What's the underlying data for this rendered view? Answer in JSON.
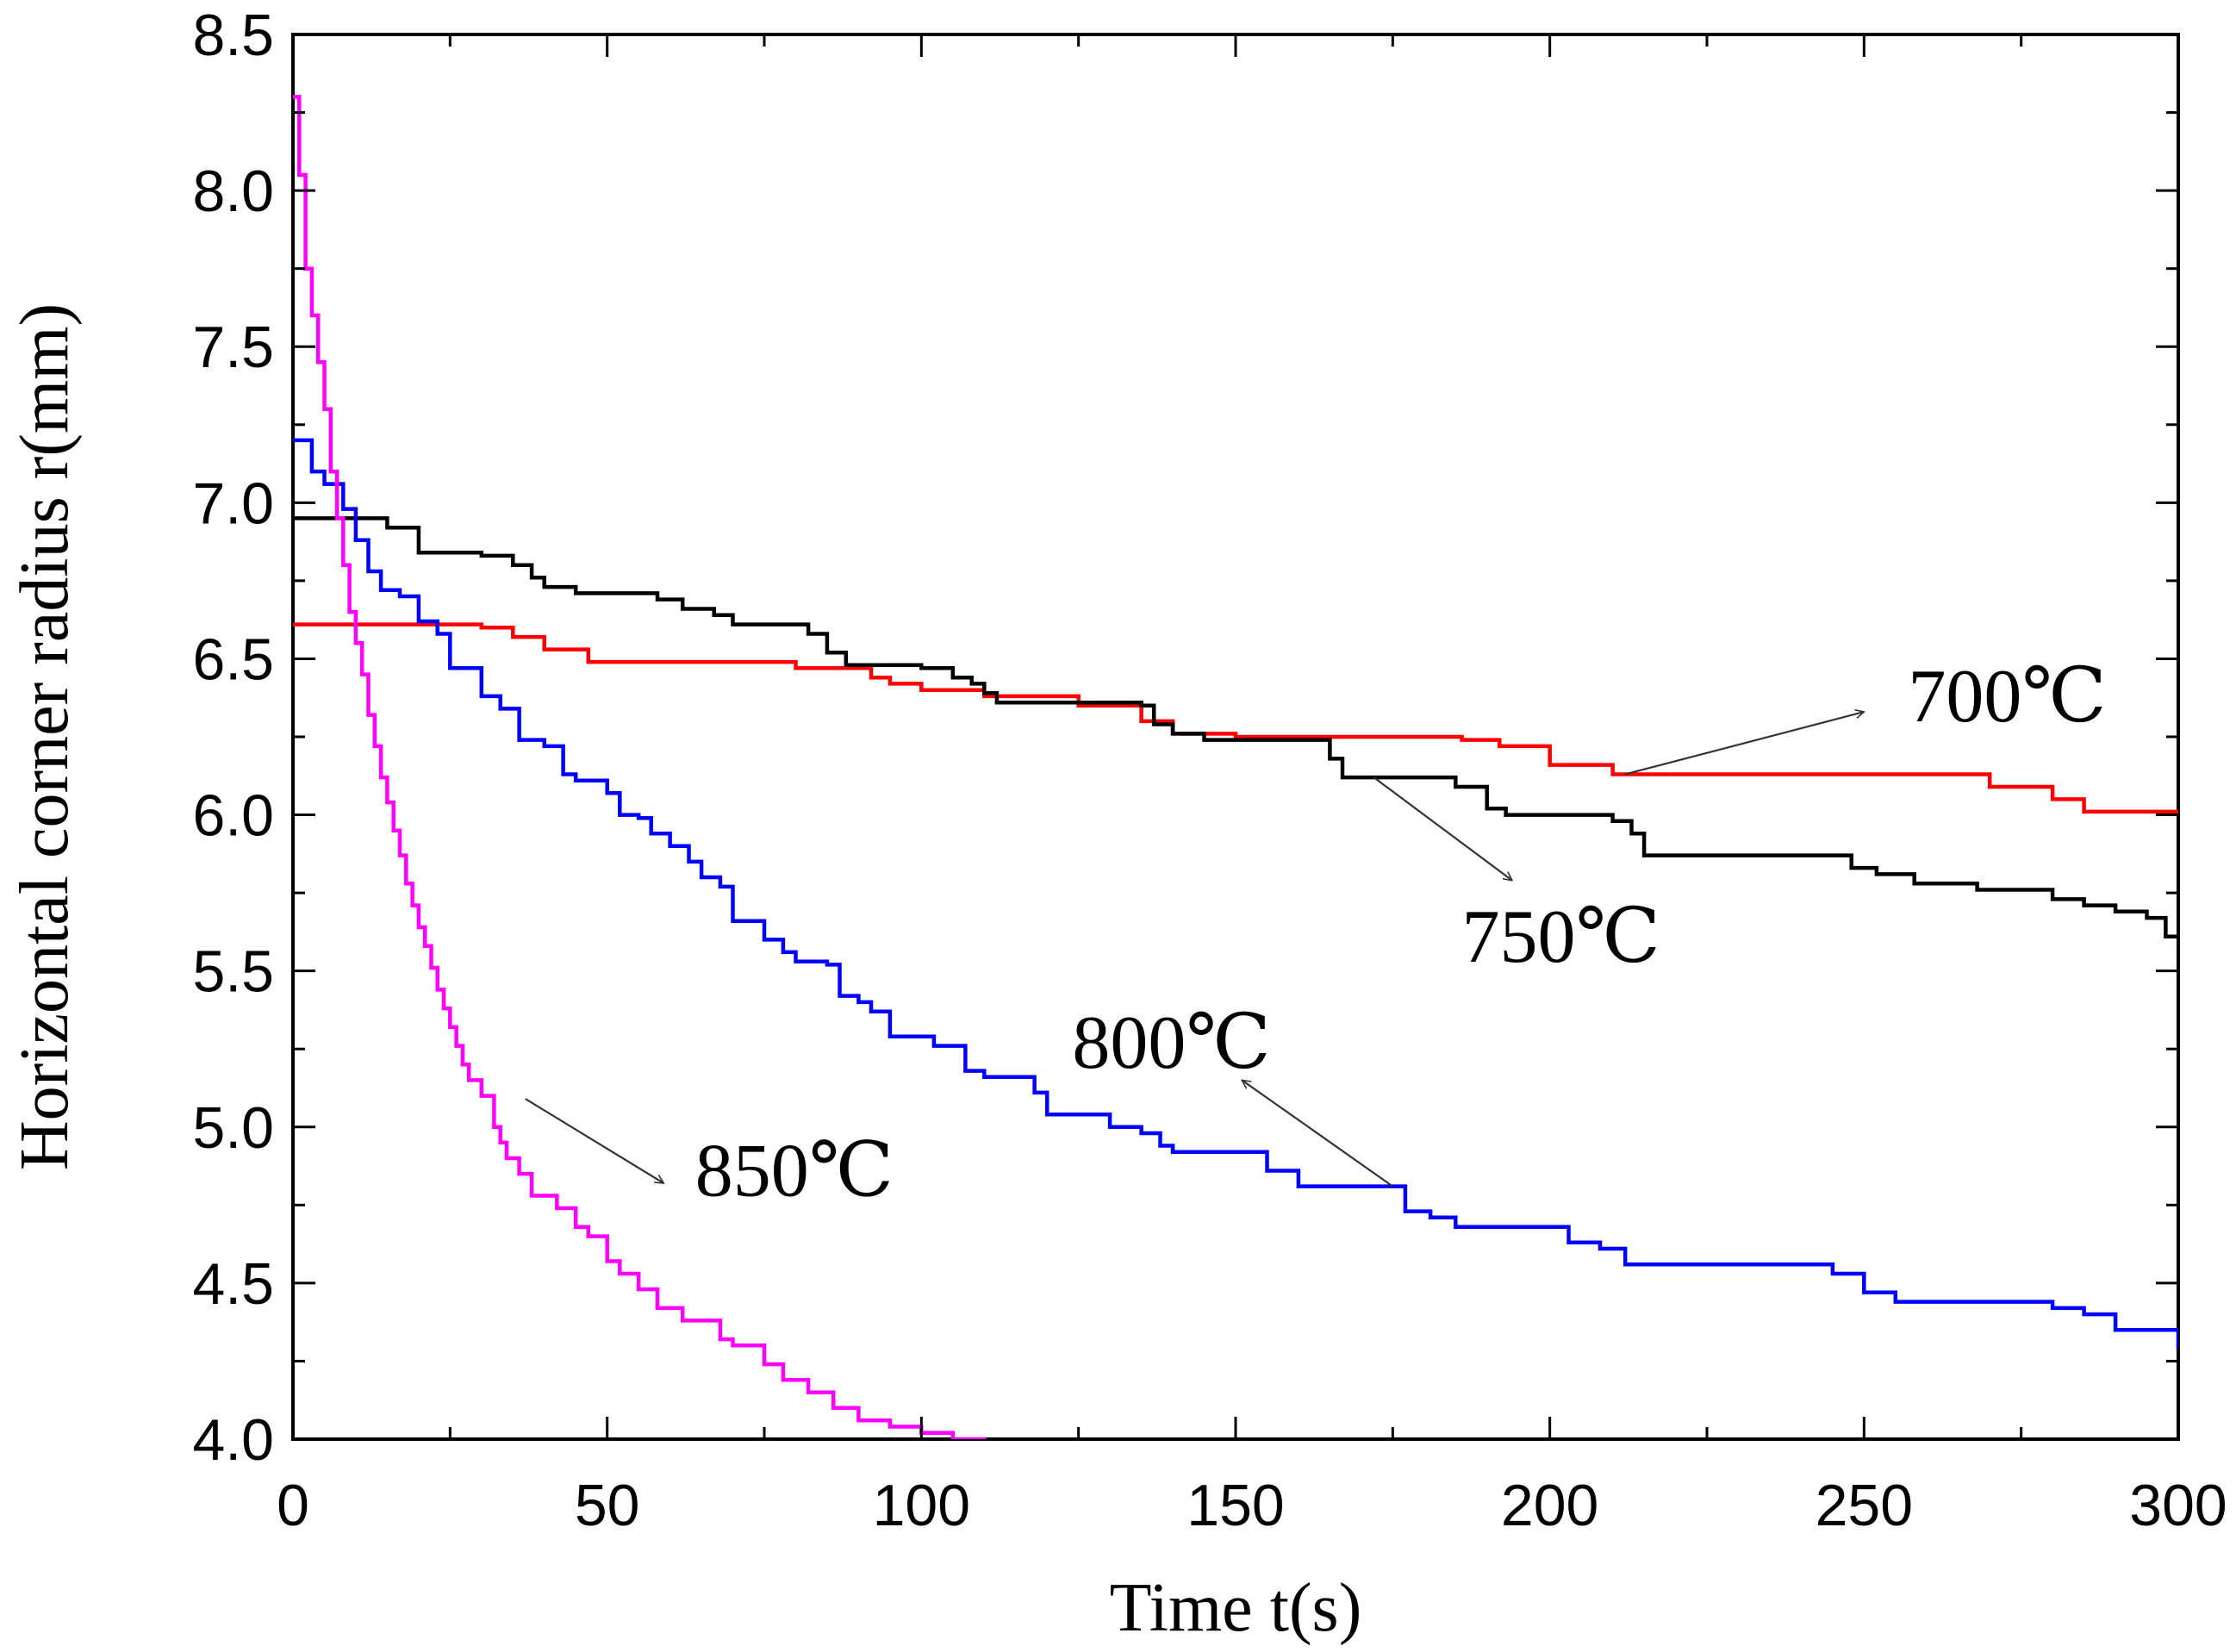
{
  "chart_data": {
    "type": "line",
    "title": "",
    "xlabel": "Time t(s)",
    "ylabel": "Horizontal corner radius r(mm)",
    "xlim": [
      0,
      300
    ],
    "ylim": [
      4.0,
      8.5
    ],
    "xticks": [
      0,
      50,
      100,
      150,
      200,
      250,
      300
    ],
    "yticks": [
      4.0,
      4.5,
      5.0,
      5.5,
      6.0,
      6.5,
      7.0,
      7.5,
      8.0,
      8.5
    ],
    "xtick_labels": [
      "0",
      "50",
      "100",
      "150",
      "200",
      "250",
      "300"
    ],
    "ytick_labels": [
      "4.0",
      "4.5",
      "5.0",
      "5.5",
      "6.0",
      "6.5",
      "7.0",
      "7.5",
      "8.0",
      "8.5"
    ],
    "grid": false,
    "series": [
      {
        "name": "700℃",
        "color": "#ff0000",
        "step": true,
        "points": [
          [
            0,
            6.61
          ],
          [
            25,
            6.61
          ],
          [
            30,
            6.6
          ],
          [
            35,
            6.57
          ],
          [
            40,
            6.53
          ],
          [
            47,
            6.49
          ],
          [
            75,
            6.49
          ],
          [
            80,
            6.47
          ],
          [
            92,
            6.44
          ],
          [
            95,
            6.42
          ],
          [
            100,
            6.4
          ],
          [
            110,
            6.38
          ],
          [
            125,
            6.35
          ],
          [
            135,
            6.3
          ],
          [
            140,
            6.26
          ],
          [
            150,
            6.25
          ],
          [
            175,
            6.25
          ],
          [
            186,
            6.24
          ],
          [
            192,
            6.22
          ],
          [
            200,
            6.16
          ],
          [
            210,
            6.13
          ],
          [
            257,
            6.13
          ],
          [
            270,
            6.09
          ],
          [
            280,
            6.05
          ],
          [
            285,
            6.01
          ],
          [
            300,
            6.01
          ]
        ]
      },
      {
        "name": "750℃",
        "color": "#000000",
        "step": true,
        "points": [
          [
            0,
            6.95
          ],
          [
            12,
            6.95
          ],
          [
            15,
            6.92
          ],
          [
            20,
            6.84
          ],
          [
            30,
            6.83
          ],
          [
            35,
            6.8
          ],
          [
            38,
            6.76
          ],
          [
            40,
            6.73
          ],
          [
            45,
            6.71
          ],
          [
            55,
            6.71
          ],
          [
            58,
            6.69
          ],
          [
            62,
            6.66
          ],
          [
            67,
            6.64
          ],
          [
            70,
            6.61
          ],
          [
            80,
            6.61
          ],
          [
            82,
            6.58
          ],
          [
            85,
            6.52
          ],
          [
            88,
            6.48
          ],
          [
            95,
            6.48
          ],
          [
            100,
            6.47
          ],
          [
            103,
            6.47
          ],
          [
            105,
            6.44
          ],
          [
            108,
            6.42
          ],
          [
            110,
            6.39
          ],
          [
            112,
            6.36
          ],
          [
            125,
            6.36
          ],
          [
            135,
            6.35
          ],
          [
            137,
            6.29
          ],
          [
            140,
            6.26
          ],
          [
            145,
            6.24
          ],
          [
            160,
            6.24
          ],
          [
            165,
            6.18
          ],
          [
            167,
            6.12
          ],
          [
            178,
            6.12
          ],
          [
            185,
            6.09
          ],
          [
            190,
            6.02
          ],
          [
            193,
            6.0
          ],
          [
            205,
            6.0
          ],
          [
            210,
            5.98
          ],
          [
            213,
            5.94
          ],
          [
            215,
            5.87
          ],
          [
            245,
            5.87
          ],
          [
            248,
            5.83
          ],
          [
            252,
            5.81
          ],
          [
            258,
            5.78
          ],
          [
            268,
            5.76
          ],
          [
            280,
            5.73
          ],
          [
            285,
            5.71
          ],
          [
            290,
            5.69
          ],
          [
            295,
            5.67
          ],
          [
            298,
            5.61
          ],
          [
            300,
            5.61
          ]
        ]
      },
      {
        "name": "800℃",
        "color": "#0000ff",
        "step": true,
        "points": [
          [
            0,
            7.2
          ],
          [
            2,
            7.2
          ],
          [
            3,
            7.1
          ],
          [
            5,
            7.06
          ],
          [
            8,
            6.98
          ],
          [
            10,
            6.88
          ],
          [
            12,
            6.78
          ],
          [
            14,
            6.72
          ],
          [
            17,
            6.7
          ],
          [
            20,
            6.62
          ],
          [
            23,
            6.58
          ],
          [
            25,
            6.47
          ],
          [
            28,
            6.47
          ],
          [
            30,
            6.38
          ],
          [
            33,
            6.34
          ],
          [
            36,
            6.24
          ],
          [
            40,
            6.22
          ],
          [
            43,
            6.13
          ],
          [
            45,
            6.11
          ],
          [
            50,
            6.07
          ],
          [
            52,
            6.0
          ],
          [
            55,
            5.99
          ],
          [
            57,
            5.94
          ],
          [
            60,
            5.9
          ],
          [
            63,
            5.85
          ],
          [
            65,
            5.8
          ],
          [
            68,
            5.77
          ],
          [
            70,
            5.66
          ],
          [
            73,
            5.66
          ],
          [
            75,
            5.6
          ],
          [
            78,
            5.56
          ],
          [
            80,
            5.53
          ],
          [
            85,
            5.52
          ],
          [
            87,
            5.42
          ],
          [
            90,
            5.4
          ],
          [
            92,
            5.37
          ],
          [
            95,
            5.29
          ],
          [
            100,
            5.29
          ],
          [
            102,
            5.26
          ],
          [
            107,
            5.18
          ],
          [
            110,
            5.16
          ],
          [
            115,
            5.16
          ],
          [
            118,
            5.11
          ],
          [
            120,
            5.04
          ],
          [
            125,
            5.04
          ],
          [
            130,
            5.0
          ],
          [
            135,
            4.98
          ],
          [
            138,
            4.94
          ],
          [
            140,
            4.92
          ],
          [
            150,
            4.92
          ],
          [
            155,
            4.86
          ],
          [
            160,
            4.81
          ],
          [
            175,
            4.81
          ],
          [
            177,
            4.73
          ],
          [
            181,
            4.71
          ],
          [
            185,
            4.68
          ],
          [
            200,
            4.68
          ],
          [
            203,
            4.63
          ],
          [
            208,
            4.61
          ],
          [
            212,
            4.56
          ],
          [
            240,
            4.56
          ],
          [
            245,
            4.53
          ],
          [
            250,
            4.47
          ],
          [
            255,
            4.44
          ],
          [
            275,
            4.44
          ],
          [
            280,
            4.42
          ],
          [
            285,
            4.4
          ],
          [
            290,
            4.35
          ],
          [
            297,
            4.35
          ],
          [
            300,
            4.29
          ]
        ]
      },
      {
        "name": "850℃",
        "color": "#ff00ff",
        "step": true,
        "points": [
          [
            0,
            8.3
          ],
          [
            1,
            8.05
          ],
          [
            2,
            7.75
          ],
          [
            3,
            7.6
          ],
          [
            4,
            7.45
          ],
          [
            5,
            7.3
          ],
          [
            6,
            7.1
          ],
          [
            7,
            6.95
          ],
          [
            8,
            6.8
          ],
          [
            9,
            6.65
          ],
          [
            10,
            6.55
          ],
          [
            11,
            6.45
          ],
          [
            12,
            6.32
          ],
          [
            13,
            6.22
          ],
          [
            14,
            6.12
          ],
          [
            15,
            6.04
          ],
          [
            16,
            5.95
          ],
          [
            17,
            5.87
          ],
          [
            18,
            5.78
          ],
          [
            19,
            5.71
          ],
          [
            20,
            5.64
          ],
          [
            21,
            5.58
          ],
          [
            22,
            5.51
          ],
          [
            23,
            5.44
          ],
          [
            24,
            5.38
          ],
          [
            25,
            5.32
          ],
          [
            26,
            5.26
          ],
          [
            27,
            5.2
          ],
          [
            28,
            5.15
          ],
          [
            30,
            5.1
          ],
          [
            32,
            5.0
          ],
          [
            33,
            4.95
          ],
          [
            34,
            4.9
          ],
          [
            36,
            4.85
          ],
          [
            38,
            4.78
          ],
          [
            40,
            4.78
          ],
          [
            42,
            4.74
          ],
          [
            45,
            4.68
          ],
          [
            47,
            4.65
          ],
          [
            50,
            4.57
          ],
          [
            52,
            4.53
          ],
          [
            55,
            4.48
          ],
          [
            58,
            4.42
          ],
          [
            62,
            4.38
          ],
          [
            68,
            4.32
          ],
          [
            70,
            4.3
          ],
          [
            75,
            4.24
          ],
          [
            78,
            4.19
          ],
          [
            82,
            4.15
          ],
          [
            86,
            4.1
          ],
          [
            90,
            4.06
          ],
          [
            95,
            4.04
          ],
          [
            100,
            4.02
          ],
          [
            105,
            4.0
          ],
          [
            110,
            3.99
          ]
        ]
      }
    ],
    "annotations": [
      {
        "text": "700℃",
        "label_pos": [
          257,
          6.3
        ],
        "arrow_from": [
          212,
          6.13
        ],
        "arrow_to": [
          250,
          6.33
        ]
      },
      {
        "text": "750℃",
        "label_pos": [
          186,
          5.53
        ],
        "arrow_from": [
          172,
          6.12
        ],
        "arrow_to": [
          194,
          5.79
        ]
      },
      {
        "text": "800℃",
        "label_pos": [
          124,
          5.19
        ],
        "arrow_from": [
          175,
          4.81
        ],
        "arrow_to": [
          151,
          5.15
        ]
      },
      {
        "text": "850℃",
        "label_pos": [
          64,
          4.78
        ],
        "arrow_from": [
          37,
          5.09
        ],
        "arrow_to": [
          59,
          4.82
        ]
      }
    ]
  }
}
